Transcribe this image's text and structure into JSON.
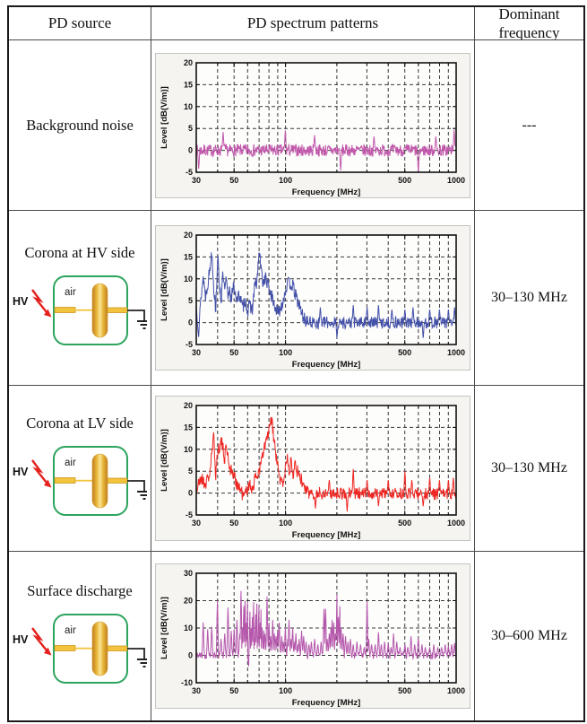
{
  "table": {
    "headers": [
      "PD source",
      "PD spectrum patterns",
      "Dominant frequency"
    ],
    "rows": [
      {
        "source": "Background noise",
        "has_diagram": false,
        "dominant": "---"
      },
      {
        "source": "Corona at HV side",
        "has_diagram": true,
        "dominant": "30–130 MHz"
      },
      {
        "source": "Corona at LV side",
        "has_diagram": true,
        "dominant": "30–130 MHz"
      },
      {
        "source": "Surface discharge",
        "has_diagram": true,
        "dominant": "30–600 MHz"
      }
    ]
  },
  "diagram": {
    "hv_label": "HV",
    "air_label": "air",
    "colors": {
      "box_border": "#2da45e",
      "electrode": "#f2c33c",
      "electrode_edge": "#cf9722",
      "bolt": "#e3211d",
      "wire": "#222222",
      "gold_dark": "#bf7d1e",
      "gold_mid": "#eab93c",
      "gold_light": "#fbe59a"
    }
  },
  "chart_data": [
    {
      "type": "line",
      "series_name": "Background noise",
      "color": "#c158ab",
      "xlabel": "Frequency [MHz]",
      "ylabel": "Level [dB(V/m)]",
      "xscale": "log",
      "xlim": [
        30,
        1000
      ],
      "ylim": [
        -5,
        20
      ],
      "xticks": [
        30,
        50,
        100,
        500,
        1000
      ],
      "yticks": [
        20,
        15,
        10,
        5,
        0,
        -5
      ],
      "xgrid": [
        40,
        50,
        60,
        70,
        80,
        90,
        100,
        200,
        300,
        400,
        500,
        600,
        700,
        800,
        900
      ],
      "ygrid": [
        15,
        10,
        5,
        0
      ],
      "grid": true,
      "legend": "none",
      "seed": 7,
      "envelope": [
        [
          30,
          0
        ],
        [
          1000,
          0
        ]
      ],
      "noise_regions": [
        [
          30,
          1000,
          1.4
        ]
      ],
      "spikes": [
        [
          31,
          -4.2
        ],
        [
          43,
          4.2
        ],
        [
          100,
          4.6
        ],
        [
          148,
          3.5
        ],
        [
          210,
          -4.6
        ],
        [
          330,
          3.2
        ],
        [
          600,
          -5
        ],
        [
          760,
          3.2
        ],
        [
          975,
          4.7
        ]
      ]
    },
    {
      "type": "line",
      "series_name": "Corona at HV side",
      "color": "#4350a8",
      "xlabel": "Frequency [MHz]",
      "ylabel": "Level [dB(V/m)]",
      "xscale": "log",
      "xlim": [
        30,
        1000
      ],
      "ylim": [
        -5,
        20
      ],
      "xticks": [
        30,
        50,
        100,
        500,
        1000
      ],
      "yticks": [
        20,
        15,
        10,
        5,
        0,
        -5
      ],
      "xgrid": [
        40,
        50,
        60,
        70,
        80,
        90,
        100,
        200,
        300,
        400,
        500,
        600,
        700,
        800,
        900
      ],
      "ygrid": [
        15,
        10,
        5,
        0
      ],
      "grid": true,
      "legend": "none",
      "seed": 13,
      "envelope": [
        [
          30,
          4
        ],
        [
          31,
          -2
        ],
        [
          32,
          6
        ],
        [
          33,
          10.5
        ],
        [
          34,
          6
        ],
        [
          35,
          9
        ],
        [
          36,
          12
        ],
        [
          37,
          16.5
        ],
        [
          38,
          8
        ],
        [
          39,
          3
        ],
        [
          40,
          14.8
        ],
        [
          41,
          9
        ],
        [
          42,
          5
        ],
        [
          43,
          11
        ],
        [
          44,
          7
        ],
        [
          45,
          9.8
        ],
        [
          46,
          6
        ],
        [
          47,
          8
        ],
        [
          48,
          5.5
        ],
        [
          50,
          8.5
        ],
        [
          52,
          5
        ],
        [
          54,
          6.5
        ],
        [
          56,
          3
        ],
        [
          58,
          5.5
        ],
        [
          60,
          2.5
        ],
        [
          62,
          4
        ],
        [
          64,
          3
        ],
        [
          66,
          8.5
        ],
        [
          68,
          9
        ],
        [
          70,
          16.3
        ],
        [
          72,
          12
        ],
        [
          74,
          9
        ],
        [
          76,
          10.5
        ],
        [
          78,
          9
        ],
        [
          80,
          8
        ],
        [
          83,
          6
        ],
        [
          86,
          4
        ],
        [
          90,
          2
        ],
        [
          94,
          3.5
        ],
        [
          98,
          6
        ],
        [
          102,
          8.7
        ],
        [
          106,
          9
        ],
        [
          110,
          8.5
        ],
        [
          115,
          6
        ],
        [
          120,
          4
        ],
        [
          125,
          2
        ],
        [
          130,
          0.5
        ],
        [
          140,
          0
        ],
        [
          1000,
          0
        ]
      ],
      "noise_regions": [
        [
          30,
          130,
          1.6
        ],
        [
          130,
          1000,
          1.4
        ]
      ],
      "spikes": [
        [
          160,
          3.5
        ],
        [
          200,
          -3.5
        ],
        [
          250,
          4
        ],
        [
          300,
          3.5
        ],
        [
          350,
          4
        ],
        [
          420,
          3
        ],
        [
          500,
          3
        ],
        [
          560,
          3.5
        ],
        [
          640,
          -3.5
        ],
        [
          700,
          3
        ],
        [
          800,
          3
        ],
        [
          900,
          3
        ],
        [
          980,
          3.5
        ]
      ]
    },
    {
      "type": "line",
      "series_name": "Corona at LV side",
      "color": "#ee2723",
      "xlabel": "Frequency [MHz]",
      "ylabel": "Level [dB(V/m)]",
      "xscale": "log",
      "xlim": [
        30,
        1000
      ],
      "ylim": [
        -5,
        20
      ],
      "xticks": [
        30,
        50,
        100,
        500,
        1000
      ],
      "yticks": [
        20,
        15,
        10,
        5,
        0,
        -5
      ],
      "xgrid": [
        40,
        50,
        60,
        70,
        80,
        90,
        100,
        200,
        300,
        400,
        500,
        600,
        700,
        800,
        900
      ],
      "ygrid": [
        15,
        10,
        5,
        0
      ],
      "grid": true,
      "legend": "none",
      "seed": 21,
      "envelope": [
        [
          30,
          0.5
        ],
        [
          32,
          3.5
        ],
        [
          34,
          2
        ],
        [
          36,
          4.5
        ],
        [
          38,
          13
        ],
        [
          39,
          4
        ],
        [
          40,
          9.5
        ],
        [
          42,
          12
        ],
        [
          44,
          8
        ],
        [
          45,
          11
        ],
        [
          47,
          6
        ],
        [
          49,
          4.5
        ],
        [
          51,
          3
        ],
        [
          53,
          1.5
        ],
        [
          55,
          0.5
        ],
        [
          57,
          -1
        ],
        [
          59,
          0.5
        ],
        [
          61,
          2
        ],
        [
          63,
          1
        ],
        [
          65,
          2
        ],
        [
          67,
          3.5
        ],
        [
          69,
          4.5
        ],
        [
          71,
          6
        ],
        [
          73,
          8
        ],
        [
          75,
          10
        ],
        [
          77,
          12
        ],
        [
          80,
          14
        ],
        [
          83,
          17
        ],
        [
          85,
          13
        ],
        [
          87,
          10
        ],
        [
          89,
          7
        ],
        [
          91,
          5
        ],
        [
          93,
          3
        ],
        [
          96,
          2
        ],
        [
          99,
          4.5
        ],
        [
          102,
          8.5
        ],
        [
          105,
          4
        ],
        [
          108,
          8
        ],
        [
          111,
          4.5
        ],
        [
          114,
          8
        ],
        [
          117,
          5
        ],
        [
          120,
          4
        ],
        [
          124,
          3
        ],
        [
          128,
          1.5
        ],
        [
          135,
          0
        ],
        [
          1000,
          -0.2
        ]
      ],
      "noise_regions": [
        [
          30,
          130,
          1.6
        ],
        [
          130,
          1000,
          1.4
        ]
      ],
      "spikes": [
        [
          150,
          -3.5
        ],
        [
          180,
          3
        ],
        [
          230,
          -4.2
        ],
        [
          250,
          5.5
        ],
        [
          300,
          3
        ],
        [
          350,
          -3
        ],
        [
          400,
          3
        ],
        [
          500,
          5
        ],
        [
          550,
          3
        ],
        [
          640,
          -3
        ],
        [
          700,
          3.5
        ],
        [
          800,
          3
        ],
        [
          900,
          3
        ],
        [
          960,
          3.5
        ]
      ]
    },
    {
      "type": "line",
      "series_name": "Surface discharge",
      "color": "#b558ac",
      "xlabel": "Frequency [MHz]",
      "ylabel": "Level [dB(V/m)]",
      "xscale": "log",
      "xlim": [
        30,
        1000
      ],
      "ylim": [
        -10,
        30
      ],
      "xticks": [
        30,
        50,
        100,
        500,
        1000
      ],
      "yticks": [
        30,
        20,
        10,
        0,
        -10
      ],
      "xgrid": [
        40,
        50,
        60,
        70,
        80,
        90,
        100,
        200,
        300,
        400,
        500,
        600,
        700,
        800,
        900
      ],
      "ygrid": [
        20,
        10,
        0
      ],
      "grid": true,
      "legend": "none",
      "seed": 42,
      "envelope": [
        [
          30,
          0
        ],
        [
          1000,
          0
        ]
      ],
      "noise_regions": [
        [
          30,
          1000,
          1.3
        ]
      ],
      "spikes": [
        [
          33,
          12
        ],
        [
          35,
          9.5
        ],
        [
          37,
          10.5
        ],
        [
          40,
          20
        ],
        [
          42,
          6
        ],
        [
          44,
          8
        ],
        [
          46,
          17.5
        ],
        [
          48,
          9
        ],
        [
          50,
          9.5
        ],
        [
          52,
          13
        ],
        [
          54,
          8
        ],
        [
          55,
          23.5
        ],
        [
          56,
          10
        ],
        [
          57,
          18
        ],
        [
          58,
          20
        ],
        [
          59,
          12
        ],
        [
          60,
          19.5
        ],
        [
          61,
          -4
        ],
        [
          62,
          16
        ],
        [
          63,
          10
        ],
        [
          64,
          14
        ],
        [
          65,
          19.5
        ],
        [
          66,
          9
        ],
        [
          67,
          15
        ],
        [
          68,
          19
        ],
        [
          69,
          10
        ],
        [
          70,
          18
        ],
        [
          71,
          12
        ],
        [
          72,
          24
        ],
        [
          73,
          10
        ],
        [
          75,
          13
        ],
        [
          76,
          8
        ],
        [
          78,
          21.5
        ],
        [
          80,
          12
        ],
        [
          82,
          7
        ],
        [
          84,
          13
        ],
        [
          86,
          8
        ],
        [
          88,
          7
        ],
        [
          90,
          9
        ],
        [
          92,
          12
        ],
        [
          95,
          7
        ],
        [
          97,
          5
        ],
        [
          100,
          10
        ],
        [
          103,
          6
        ],
        [
          105,
          13
        ],
        [
          108,
          6
        ],
        [
          110,
          10
        ],
        [
          113,
          5
        ],
        [
          115,
          8
        ],
        [
          118,
          4
        ],
        [
          120,
          6
        ],
        [
          124,
          9
        ],
        [
          128,
          7
        ],
        [
          132,
          5
        ],
        [
          137,
          4
        ],
        [
          142,
          5
        ],
        [
          148,
          6
        ],
        [
          155,
          4
        ],
        [
          162,
          5
        ],
        [
          168,
          17
        ],
        [
          172,
          17
        ],
        [
          176,
          6
        ],
        [
          180,
          8
        ],
        [
          184,
          10
        ],
        [
          188,
          13
        ],
        [
          192,
          12
        ],
        [
          196,
          8
        ],
        [
          200,
          22.3
        ],
        [
          204,
          14
        ],
        [
          208,
          18
        ],
        [
          212,
          10
        ],
        [
          218,
          8
        ],
        [
          225,
          7
        ],
        [
          232,
          5
        ],
        [
          240,
          6
        ],
        [
          250,
          4
        ],
        [
          262,
          5
        ],
        [
          275,
          4
        ],
        [
          290,
          3
        ],
        [
          300,
          19.7
        ],
        [
          308,
          6
        ],
        [
          320,
          4
        ],
        [
          335,
          4
        ],
        [
          350,
          8.5
        ],
        [
          365,
          4
        ],
        [
          380,
          5
        ],
        [
          400,
          4.5
        ],
        [
          415,
          3
        ],
        [
          430,
          8
        ],
        [
          450,
          5
        ],
        [
          470,
          3
        ],
        [
          500,
          4
        ],
        [
          520,
          3
        ],
        [
          545,
          7
        ],
        [
          570,
          4
        ],
        [
          600,
          6.5
        ],
        [
          630,
          4
        ],
        [
          660,
          3
        ],
        [
          700,
          3
        ],
        [
          740,
          4
        ],
        [
          780,
          3
        ],
        [
          820,
          3
        ],
        [
          860,
          4
        ],
        [
          900,
          3.5
        ],
        [
          940,
          4
        ],
        [
          980,
          4.5
        ]
      ]
    }
  ]
}
